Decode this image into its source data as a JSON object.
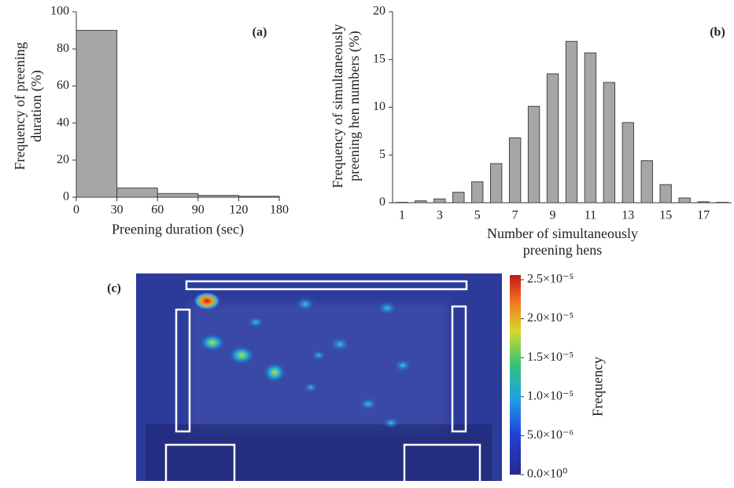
{
  "chart_data": [
    {
      "type": "histogram",
      "panel_label": "(a)",
      "y_label": "Frequency of preening duration (%)",
      "x_label": "Preening duration (sec)",
      "bins": [
        0,
        30,
        60,
        90,
        120,
        180
      ],
      "values": [
        90,
        5,
        2,
        1,
        0.5
      ],
      "color": "#a6a6a6",
      "ylim": [
        0,
        100
      ],
      "yticks": [
        0,
        20,
        40,
        60,
        80,
        100
      ]
    },
    {
      "type": "bar",
      "panel_label": "(b)",
      "y_label": "Frequency of simultaneously preening hen numbers (%)",
      "x_label": "Number of simultaneously preening hens",
      "categories": [
        "1",
        null,
        "3",
        null,
        "5",
        null,
        "7",
        null,
        "9",
        null,
        "11",
        null,
        "13",
        null,
        "15",
        null,
        "17",
        null
      ],
      "values": [
        0.05,
        0.2,
        0.4,
        1.1,
        2.2,
        4.1,
        6.8,
        10.1,
        13.5,
        16.9,
        15.7,
        12.6,
        8.4,
        4.4,
        1.9,
        0.5,
        0.1,
        0.05
      ],
      "color": "#a6a6a6",
      "ylim": [
        0,
        20
      ],
      "yticks": [
        0,
        5,
        10,
        15,
        20
      ]
    },
    {
      "type": "heatmap",
      "panel_label": "(c)",
      "colorbar_label": "Frequency",
      "clim": [
        0,
        2.56e-05
      ],
      "cticks": [
        {
          "value": 0,
          "label": "0.0×10⁰"
        },
        {
          "value": 5e-06,
          "label": "5.0×10⁻⁶"
        },
        {
          "value": 1e-05,
          "label": "1.0×10⁻⁵"
        },
        {
          "value": 1.5e-05,
          "label": "1.5×10⁻⁵"
        },
        {
          "value": 2e-05,
          "label": "2.0×10⁻⁵"
        },
        {
          "value": 2.5e-05,
          "label": "2.5×10⁻⁵"
        }
      ]
    }
  ]
}
